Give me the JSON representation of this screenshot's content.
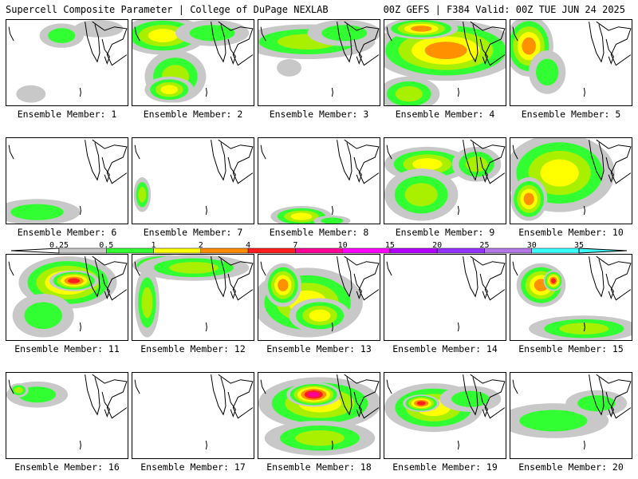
{
  "header": {
    "title_left": "Supercell Composite Parameter | College of DuPage NEXLAB",
    "title_right": "00Z GEFS | F384 Valid: 00Z TUE JUN 24 2025"
  },
  "caption_prefix": "Ensemble Member: ",
  "members": [
    {
      "num": "1",
      "blobs": [
        [
          0.45,
          0.18,
          0.18,
          0.14,
          1
        ],
        [
          0.2,
          0.85,
          0.12,
          0.1,
          0
        ],
        [
          0.75,
          0.1,
          0.2,
          0.1,
          0
        ]
      ]
    },
    {
      "num": "2",
      "blobs": [
        [
          0.25,
          0.18,
          0.35,
          0.22,
          3
        ],
        [
          0.35,
          0.65,
          0.25,
          0.3,
          2
        ],
        [
          0.3,
          0.8,
          0.2,
          0.15,
          3
        ],
        [
          0.65,
          0.15,
          0.3,
          0.15,
          1
        ]
      ]
    },
    {
      "num": "3",
      "blobs": [
        [
          0.4,
          0.25,
          0.55,
          0.2,
          2
        ],
        [
          0.7,
          0.15,
          0.3,
          0.15,
          1
        ],
        [
          0.25,
          0.55,
          0.1,
          0.1,
          0
        ]
      ]
    },
    {
      "num": "4",
      "blobs": [
        [
          0.5,
          0.35,
          0.6,
          0.35,
          4
        ],
        [
          0.2,
          0.85,
          0.25,
          0.2,
          2
        ],
        [
          0.3,
          0.1,
          0.3,
          0.12,
          4
        ]
      ]
    },
    {
      "num": "5",
      "blobs": [
        [
          0.15,
          0.3,
          0.2,
          0.35,
          4
        ],
        [
          0.3,
          0.6,
          0.15,
          0.25,
          1
        ]
      ]
    },
    {
      "num": "6",
      "blobs": [
        [
          0.25,
          0.85,
          0.35,
          0.15,
          1
        ]
      ]
    },
    {
      "num": "7",
      "blobs": [
        [
          0.08,
          0.65,
          0.07,
          0.2,
          2
        ]
      ]
    },
    {
      "num": "8",
      "blobs": [
        [
          0.35,
          0.9,
          0.25,
          0.12,
          3
        ],
        [
          0.6,
          0.95,
          0.15,
          0.06,
          1
        ]
      ]
    },
    {
      "num": "9",
      "blobs": [
        [
          0.35,
          0.3,
          0.35,
          0.2,
          3
        ],
        [
          0.3,
          0.65,
          0.3,
          0.3,
          2
        ],
        [
          0.75,
          0.3,
          0.2,
          0.2,
          2
        ]
      ]
    },
    {
      "num": "10",
      "blobs": [
        [
          0.4,
          0.4,
          0.45,
          0.45,
          3
        ],
        [
          0.15,
          0.7,
          0.15,
          0.25,
          4
        ]
      ]
    },
    {
      "num": "11",
      "blobs": [
        [
          0.5,
          0.32,
          0.4,
          0.3,
          4
        ],
        [
          0.55,
          0.3,
          0.2,
          0.12,
          5
        ],
        [
          0.3,
          0.7,
          0.25,
          0.25,
          1
        ]
      ]
    },
    {
      "num": "12",
      "blobs": [
        [
          0.25,
          0.12,
          0.25,
          0.12,
          5
        ],
        [
          0.5,
          0.15,
          0.45,
          0.15,
          2
        ],
        [
          0.12,
          0.55,
          0.1,
          0.4,
          2
        ]
      ]
    },
    {
      "num": "13",
      "blobs": [
        [
          0.4,
          0.55,
          0.45,
          0.4,
          3
        ],
        [
          0.2,
          0.35,
          0.15,
          0.25,
          4
        ],
        [
          0.5,
          0.7,
          0.25,
          0.2,
          3
        ]
      ]
    },
    {
      "num": "14",
      "blobs": []
    },
    {
      "num": "15",
      "blobs": [
        [
          0.25,
          0.35,
          0.2,
          0.25,
          4
        ],
        [
          0.35,
          0.3,
          0.08,
          0.12,
          5
        ],
        [
          0.6,
          0.85,
          0.45,
          0.15,
          2
        ]
      ]
    },
    {
      "num": "16",
      "blobs": [
        [
          0.25,
          0.25,
          0.25,
          0.15,
          1
        ],
        [
          0.1,
          0.2,
          0.08,
          0.08,
          2
        ]
      ]
    },
    {
      "num": "17",
      "blobs": []
    },
    {
      "num": "18",
      "blobs": [
        [
          0.5,
          0.35,
          0.5,
          0.3,
          3
        ],
        [
          0.45,
          0.25,
          0.22,
          0.14,
          6
        ],
        [
          0.5,
          0.75,
          0.45,
          0.2,
          2
        ]
      ]
    },
    {
      "num": "19",
      "blobs": [
        [
          0.4,
          0.4,
          0.4,
          0.28,
          3
        ],
        [
          0.3,
          0.35,
          0.15,
          0.1,
          5
        ],
        [
          0.7,
          0.3,
          0.25,
          0.15,
          1
        ]
      ]
    },
    {
      "num": "20",
      "blobs": [
        [
          0.35,
          0.55,
          0.45,
          0.2,
          1
        ],
        [
          0.7,
          0.35,
          0.25,
          0.15,
          1
        ]
      ]
    }
  ],
  "colorbar": {
    "labels": [
      "0.25",
      "0.5",
      "1",
      "2",
      "4",
      "7",
      "10",
      "15",
      "20",
      "25",
      "30",
      "35"
    ],
    "colors": [
      "#c8c8c8",
      "#32ff32",
      "#ffff00",
      "#ff8c00",
      "#ff1e1e",
      "#ff0096",
      "#ff00ff",
      "#b400ff",
      "#9632ff",
      "#b478e6",
      "#3cffff"
    ]
  },
  "level_colors": [
    "#c8c8c8",
    "#32ff32",
    "#a8f000",
    "#ffff00",
    "#ff9000",
    "#ff1e1e",
    "#ff0096"
  ]
}
